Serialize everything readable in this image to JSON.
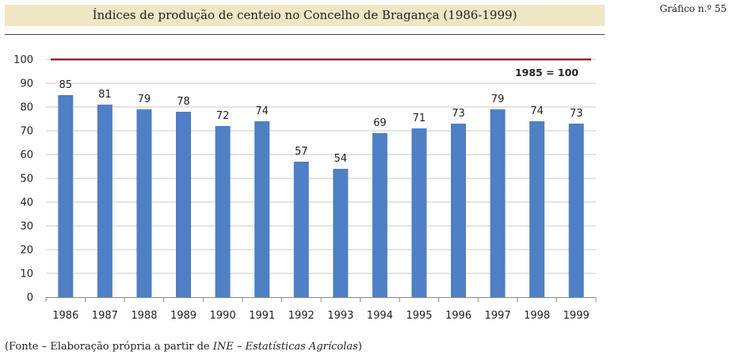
{
  "header": {
    "title": "Índices de produção de centeio no Concelho de Bragança (1986-1999)",
    "chart_number": "Gráfico n.º 55"
  },
  "footnote": {
    "prefix": "(Fonte – Elaboração própria a partir de ",
    "source": "INE – Estatísticas Agrícolas",
    "suffix": ")"
  },
  "colors": {
    "bar": "#4f7fc4",
    "reference_line": "#8b2a38",
    "grid": "#c8c8c8"
  },
  "chart_data": {
    "type": "bar",
    "title": "Índices de produção de centeio no Concelho de Bragança (1986-1999)",
    "categories": [
      "1986",
      "1987",
      "1988",
      "1989",
      "1990",
      "1991",
      "1992",
      "1993",
      "1994",
      "1995",
      "1996",
      "1997",
      "1998",
      "1999"
    ],
    "values": [
      85,
      81,
      79,
      78,
      72,
      74,
      57,
      54,
      69,
      71,
      73,
      79,
      74,
      73
    ],
    "ylim": [
      0,
      100
    ],
    "yticks": [
      0,
      10,
      20,
      30,
      40,
      50,
      60,
      70,
      80,
      90,
      100
    ],
    "reference": {
      "value": 100,
      "label": "1985 = 100"
    },
    "grid": true,
    "xlabel": "",
    "ylabel": ""
  }
}
